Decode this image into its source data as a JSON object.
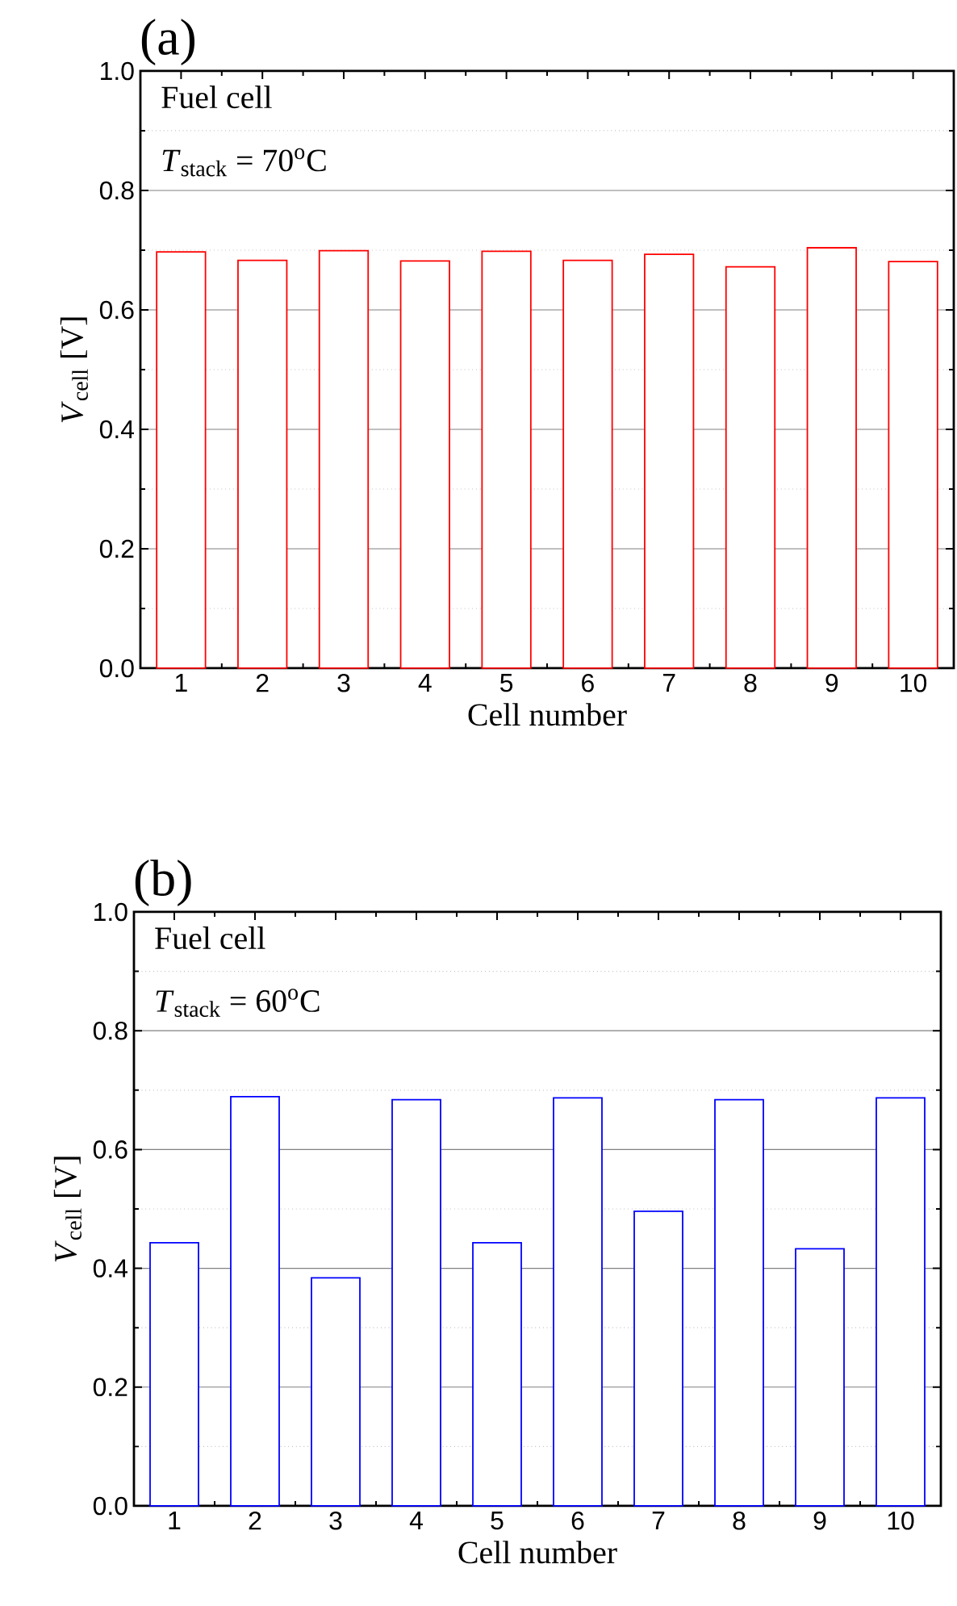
{
  "chart_data": [
    {
      "type": "bar",
      "title": "(a)",
      "xlabel": "Cell number",
      "ylabel": "*V*$_{cell}$ [V]",
      "annotations": [
        "Fuel cell",
        "*T*$_{stack}$ = 70$^{o}$C"
      ],
      "categories": [
        "1",
        "2",
        "3",
        "4",
        "5",
        "6",
        "7",
        "8",
        "9",
        "10"
      ],
      "values": [
        0.697,
        0.683,
        0.699,
        0.682,
        0.698,
        0.683,
        0.693,
        0.672,
        0.704,
        0.681
      ],
      "color": "#ff0000",
      "ylim": [
        0,
        1
      ],
      "yticks": [
        {
          "value": 0,
          "label": "0.0"
        },
        {
          "value": 0.2,
          "label": "0.2"
        },
        {
          "value": 0.4,
          "label": "0.4"
        },
        {
          "value": 0.6,
          "label": "0.6"
        },
        {
          "value": 0.8,
          "label": "0.8"
        },
        {
          "value": 1,
          "label": "1.0"
        }
      ],
      "grid": "y"
    },
    {
      "type": "bar",
      "title": "(b)",
      "xlabel": "Cell number",
      "ylabel": "*V*$_{cell}$ [V]",
      "annotations": [
        "Fuel cell",
        "*T*$_{stack}$ = 60$^{o}$C"
      ],
      "categories": [
        "1",
        "2",
        "3",
        "4",
        "5",
        "6",
        "7",
        "8",
        "9",
        "10"
      ],
      "values": [
        0.443,
        0.689,
        0.384,
        0.684,
        0.443,
        0.687,
        0.496,
        0.684,
        0.433,
        0.687
      ],
      "color": "#0000ff",
      "ylim": [
        0,
        1
      ],
      "yticks": [
        {
          "value": 0,
          "label": "0.0"
        },
        {
          "value": 0.2,
          "label": "0.2"
        },
        {
          "value": 0.4,
          "label": "0.4"
        },
        {
          "value": 0.6,
          "label": "0.6"
        },
        {
          "value": 0.8,
          "label": "0.8"
        },
        {
          "value": 1,
          "label": "1.0"
        }
      ],
      "grid": "y"
    }
  ]
}
